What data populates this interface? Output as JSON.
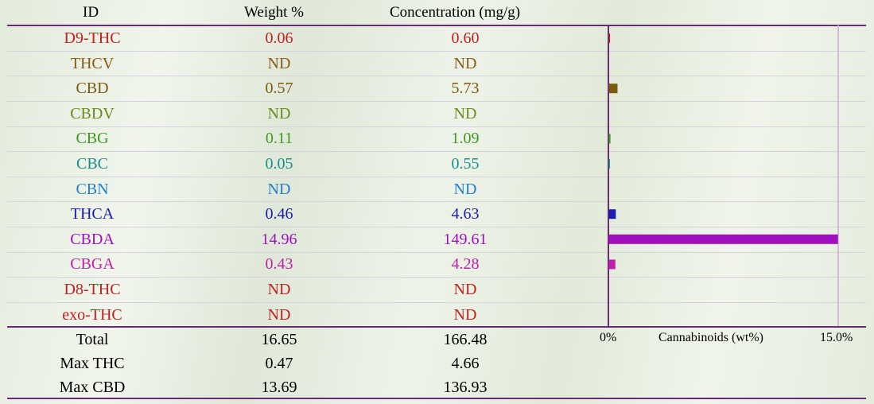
{
  "headers": {
    "id": "ID",
    "weight": "Weight %",
    "concentration": "Concentration (mg/g)"
  },
  "rows": [
    {
      "id": "D9-THC",
      "weight": "0.06",
      "conc": "0.60",
      "color": "#c0201e"
    },
    {
      "id": "THCV",
      "weight": "ND",
      "conc": "ND",
      "color": "#8a5a12"
    },
    {
      "id": "CBD",
      "weight": "0.57",
      "conc": "5.73",
      "color": "#7a5a10"
    },
    {
      "id": "CBDV",
      "weight": "ND",
      "conc": "ND",
      "color": "#6a8a1a"
    },
    {
      "id": "CBG",
      "weight": "0.11",
      "conc": "1.09",
      "color": "#3d9a20"
    },
    {
      "id": "CBC",
      "weight": "0.05",
      "conc": "0.55",
      "color": "#16908a"
    },
    {
      "id": "CBN",
      "weight": "ND",
      "conc": "ND",
      "color": "#1e7fcf"
    },
    {
      "id": "THCA",
      "weight": "0.46",
      "conc": "4.63",
      "color": "#1c1cb0"
    },
    {
      "id": "CBDA",
      "weight": "14.96",
      "conc": "149.61",
      "color": "#a010c0"
    },
    {
      "id": "CBGA",
      "weight": "0.43",
      "conc": "4.28",
      "color": "#c020a8"
    },
    {
      "id": "D8-THC",
      "weight": "ND",
      "conc": "ND",
      "color": "#c0201e"
    },
    {
      "id": "exo-THC",
      "weight": "ND",
      "conc": "ND",
      "color": "#c0201e"
    }
  ],
  "summary": [
    {
      "label": "Total",
      "weight": "16.65",
      "conc": "166.48"
    },
    {
      "label": "Max THC",
      "weight": "0.47",
      "conc": "4.66"
    },
    {
      "label": "Max CBD",
      "weight": "13.69",
      "conc": "136.93"
    }
  ],
  "chart_data": {
    "type": "bar",
    "orientation": "horizontal",
    "categories": [
      "D9-THC",
      "THCV",
      "CBD",
      "CBDV",
      "CBG",
      "CBC",
      "CBN",
      "THCA",
      "CBDA",
      "CBGA",
      "D8-THC",
      "exo-THC"
    ],
    "values": [
      0.06,
      0,
      0.57,
      0,
      0.11,
      0.05,
      0,
      0.46,
      14.96,
      0.43,
      0,
      0
    ],
    "xlim": [
      0,
      15.0
    ],
    "xlabel": "Cannabinoids (wt%)",
    "tick_min_label": "0%",
    "tick_max_label": "15.0%",
    "colors": [
      "#c0201e",
      "#8a5a12",
      "#7a5a10",
      "#6a8a1a",
      "#3d9a20",
      "#16908a",
      "#1e7fcf",
      "#1c1cb0",
      "#a010c0",
      "#c020a8",
      "#c0201e",
      "#c0201e"
    ],
    "axis_color": "#6b2a78",
    "gridline_color": "#d9b8e0"
  }
}
